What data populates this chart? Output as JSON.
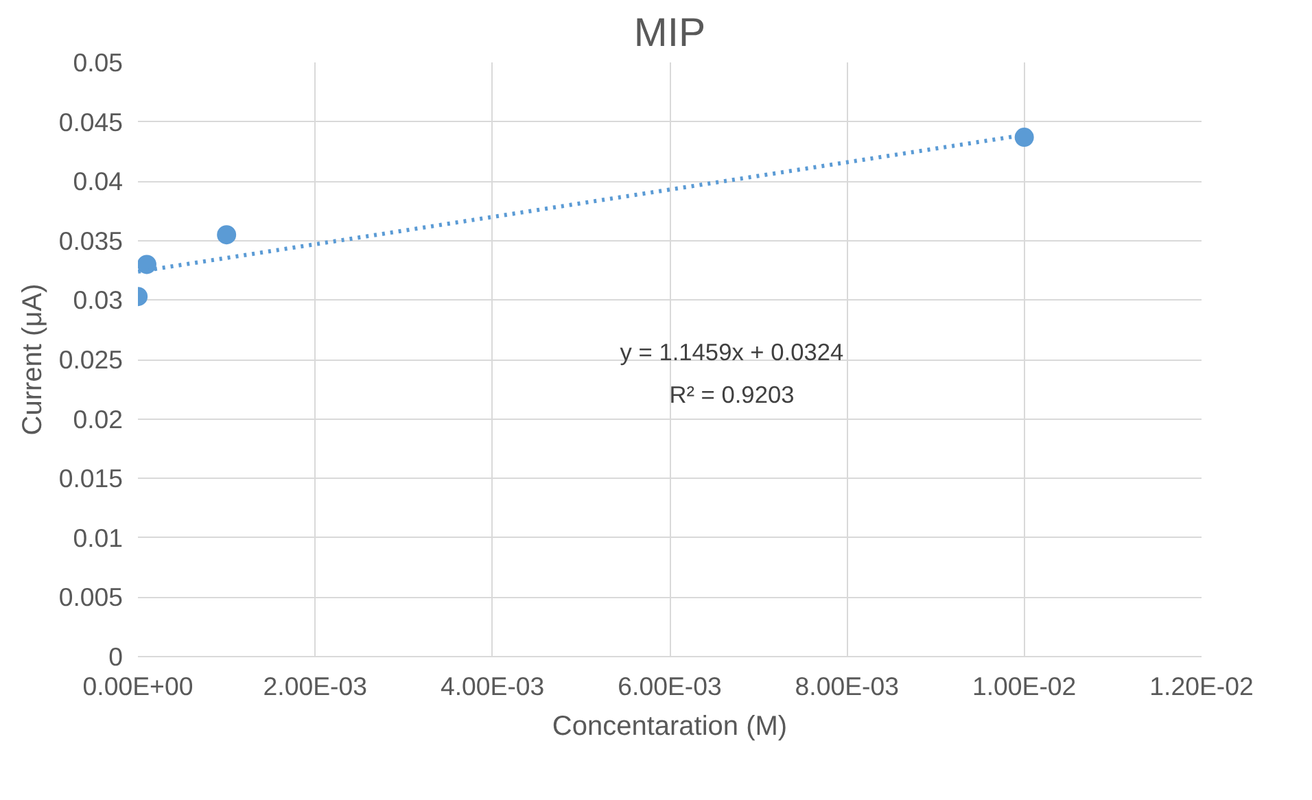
{
  "chart_data": {
    "type": "scatter",
    "title": "MIP",
    "xlabel": "Concentaration (M)",
    "ylabel": "Current (μA)",
    "series": [
      {
        "color": "#5b9bd5",
        "x": [
          1e-06,
          0.0001,
          0.001,
          0.01
        ],
        "values": [
          0.0303,
          0.033,
          0.0355,
          0.0437
        ],
        "marker": "circle"
      },
      {
        "type": "line",
        "color": "#5b9bd5",
        "x": [
          1e-06,
          0.01
        ],
        "values": [
          0.0324,
          0.0439
        ],
        "line_style": "dotted",
        "marker": "none"
      }
    ],
    "annotations": [
      "y = 1.1459x + 0.0324",
      "R² = 0.9203"
    ],
    "xlim": [
      0,
      0.012
    ],
    "ylim": [
      0,
      0.05
    ],
    "xticks": [
      {
        "value": 0,
        "label": "0.00E+00"
      },
      {
        "value": 0.002,
        "label": "2.00E-03"
      },
      {
        "value": 0.004,
        "label": "4.00E-03"
      },
      {
        "value": 0.006,
        "label": "6.00E-03"
      },
      {
        "value": 0.008,
        "label": "8.00E-03"
      },
      {
        "value": 0.01,
        "label": "1.00E-02"
      },
      {
        "value": 0.012,
        "label": "1.20E-02"
      }
    ],
    "yticks": [
      0,
      0.005,
      0.01,
      0.015,
      0.02,
      0.025,
      0.03,
      0.035,
      0.04,
      0.045,
      0.05
    ],
    "grid": true
  }
}
